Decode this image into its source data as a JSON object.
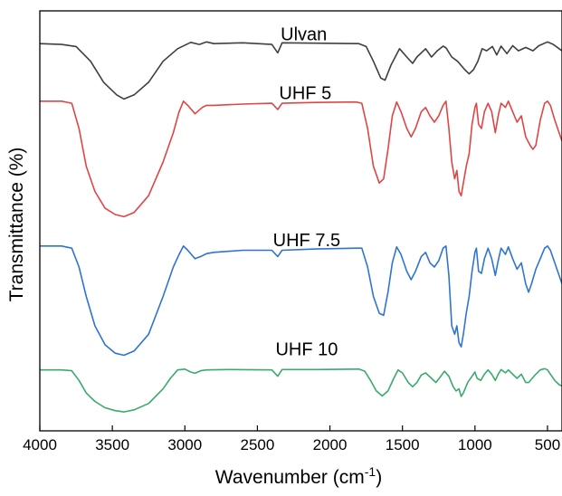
{
  "chart_data": {
    "type": "line",
    "xlabel_main": "Wavenumber (cm",
    "xlabel_sup": "-1",
    "xlabel_close": ")",
    "ylabel": "Transmittance (%)",
    "xlim": [
      4000,
      400
    ],
    "ylim": [
      0,
      100
    ],
    "x_reversed": true,
    "yticks_shown": false,
    "grid": false,
    "xticks": [
      4000,
      3500,
      3000,
      2500,
      2000,
      1500,
      1000,
      500
    ],
    "xtick_labels": [
      "4000",
      "3500",
      "3000",
      "2500",
      "2000",
      "1500",
      "1000",
      "500"
    ],
    "series": [
      {
        "name": "Ulvan",
        "color": "#3f3f3f",
        "label_x": 2180,
        "label_y": 93,
        "points": [
          [
            4000,
            92.2
          ],
          [
            3850,
            92
          ],
          [
            3750,
            91.5
          ],
          [
            3650,
            88
          ],
          [
            3560,
            83
          ],
          [
            3470,
            80
          ],
          [
            3420,
            79
          ],
          [
            3350,
            80
          ],
          [
            3250,
            83
          ],
          [
            3150,
            88
          ],
          [
            3050,
            91
          ],
          [
            2960,
            92.5
          ],
          [
            2900,
            92
          ],
          [
            2850,
            92.6
          ],
          [
            2800,
            92.2
          ],
          [
            2600,
            92.4
          ],
          [
            2400,
            92
          ],
          [
            2360,
            90
          ],
          [
            2330,
            92.4
          ],
          [
            2100,
            92.3
          ],
          [
            1800,
            92.2
          ],
          [
            1750,
            91.5
          ],
          [
            1700,
            88
          ],
          [
            1650,
            84
          ],
          [
            1620,
            83.5
          ],
          [
            1580,
            87
          ],
          [
            1520,
            91
          ],
          [
            1470,
            89
          ],
          [
            1430,
            87.5
          ],
          [
            1400,
            89
          ],
          [
            1340,
            91
          ],
          [
            1300,
            89
          ],
          [
            1260,
            90.5
          ],
          [
            1220,
            91.6
          ],
          [
            1200,
            91.2
          ],
          [
            1160,
            89
          ],
          [
            1120,
            88
          ],
          [
            1070,
            86
          ],
          [
            1040,
            85
          ],
          [
            1010,
            86
          ],
          [
            980,
            88
          ],
          [
            950,
            91
          ],
          [
            920,
            90.5
          ],
          [
            880,
            91.5
          ],
          [
            850,
            89.5
          ],
          [
            820,
            91.6
          ],
          [
            780,
            89.8
          ],
          [
            740,
            91.7
          ],
          [
            700,
            90.5
          ],
          [
            650,
            91.3
          ],
          [
            600,
            90.5
          ],
          [
            560,
            91.7
          ],
          [
            500,
            92.6
          ],
          [
            460,
            92
          ],
          [
            420,
            91
          ],
          [
            400,
            90.5
          ]
        ]
      },
      {
        "name": "UHF 5",
        "color": "#e04545",
        "label_x": 2170,
        "label_y": 79,
        "points": [
          [
            4000,
            78.5
          ],
          [
            3850,
            78.5
          ],
          [
            3780,
            78
          ],
          [
            3730,
            72
          ],
          [
            3680,
            63
          ],
          [
            3620,
            57
          ],
          [
            3550,
            53
          ],
          [
            3480,
            51.5
          ],
          [
            3420,
            51
          ],
          [
            3350,
            52
          ],
          [
            3250,
            56
          ],
          [
            3150,
            64
          ],
          [
            3080,
            71
          ],
          [
            3040,
            76
          ],
          [
            3010,
            78.5
          ],
          [
            2980,
            77.5
          ],
          [
            2930,
            75.5
          ],
          [
            2880,
            77
          ],
          [
            2850,
            77.5
          ],
          [
            2800,
            77.5
          ],
          [
            2600,
            77.8
          ],
          [
            2400,
            78
          ],
          [
            2360,
            76.5
          ],
          [
            2330,
            78
          ],
          [
            2100,
            78.2
          ],
          [
            1820,
            78.3
          ],
          [
            1780,
            78
          ],
          [
            1740,
            72
          ],
          [
            1700,
            63
          ],
          [
            1660,
            59
          ],
          [
            1630,
            60
          ],
          [
            1600,
            67
          ],
          [
            1570,
            75
          ],
          [
            1540,
            78.3
          ],
          [
            1510,
            76
          ],
          [
            1470,
            72
          ],
          [
            1440,
            70
          ],
          [
            1410,
            72
          ],
          [
            1370,
            76
          ],
          [
            1340,
            77
          ],
          [
            1310,
            75
          ],
          [
            1280,
            73.5
          ],
          [
            1250,
            75
          ],
          [
            1220,
            77.5
          ],
          [
            1200,
            78.5
          ],
          [
            1180,
            72
          ],
          [
            1160,
            64
          ],
          [
            1140,
            60
          ],
          [
            1125,
            62
          ],
          [
            1110,
            57
          ],
          [
            1095,
            56
          ],
          [
            1080,
            59
          ],
          [
            1060,
            63
          ],
          [
            1040,
            66
          ],
          [
            1020,
            73
          ],
          [
            1000,
            77
          ],
          [
            990,
            78
          ],
          [
            975,
            73
          ],
          [
            955,
            72
          ],
          [
            935,
            76
          ],
          [
            910,
            78
          ],
          [
            885,
            76
          ],
          [
            860,
            71
          ],
          [
            840,
            75
          ],
          [
            820,
            78
          ],
          [
            790,
            77
          ],
          [
            770,
            78.5
          ],
          [
            740,
            76
          ],
          [
            710,
            73.5
          ],
          [
            680,
            75
          ],
          [
            650,
            70
          ],
          [
            620,
            68
          ],
          [
            600,
            67
          ],
          [
            580,
            68
          ],
          [
            550,
            74
          ],
          [
            520,
            78
          ],
          [
            500,
            78.5
          ],
          [
            480,
            77.5
          ],
          [
            450,
            74
          ],
          [
            420,
            71
          ],
          [
            400,
            69
          ]
        ]
      },
      {
        "name": "UHF 7.5",
        "color": "#2f74d0",
        "label_x": 2160,
        "label_y": 44,
        "points": [
          [
            4000,
            44
          ],
          [
            3850,
            44
          ],
          [
            3780,
            43.5
          ],
          [
            3730,
            39
          ],
          [
            3680,
            32
          ],
          [
            3620,
            25
          ],
          [
            3550,
            20.5
          ],
          [
            3480,
            18.5
          ],
          [
            3420,
            18
          ],
          [
            3350,
            19
          ],
          [
            3250,
            23
          ],
          [
            3150,
            32
          ],
          [
            3080,
            39
          ],
          [
            3040,
            42
          ],
          [
            3010,
            44
          ],
          [
            2980,
            43
          ],
          [
            2930,
            41
          ],
          [
            2890,
            41.5
          ],
          [
            2850,
            42.2
          ],
          [
            2800,
            42.5
          ],
          [
            2600,
            43
          ],
          [
            2400,
            43
          ],
          [
            2360,
            41.5
          ],
          [
            2330,
            43
          ],
          [
            2100,
            43.3
          ],
          [
            1820,
            43.5
          ],
          [
            1780,
            43.5
          ],
          [
            1740,
            39
          ],
          [
            1700,
            32
          ],
          [
            1660,
            28
          ],
          [
            1630,
            27.5
          ],
          [
            1600,
            33
          ],
          [
            1570,
            40
          ],
          [
            1540,
            43.8
          ],
          [
            1510,
            42
          ],
          [
            1470,
            38
          ],
          [
            1440,
            36
          ],
          [
            1410,
            38
          ],
          [
            1370,
            41.5
          ],
          [
            1340,
            42.5
          ],
          [
            1310,
            40
          ],
          [
            1280,
            39
          ],
          [
            1250,
            40.5
          ],
          [
            1220,
            43.5
          ],
          [
            1200,
            44
          ],
          [
            1180,
            37
          ],
          [
            1160,
            25
          ],
          [
            1140,
            23
          ],
          [
            1125,
            25
          ],
          [
            1110,
            21
          ],
          [
            1095,
            20
          ],
          [
            1080,
            23
          ],
          [
            1060,
            28
          ],
          [
            1040,
            32
          ],
          [
            1020,
            38
          ],
          [
            1000,
            42.5
          ],
          [
            990,
            43.5
          ],
          [
            975,
            38
          ],
          [
            955,
            37.5
          ],
          [
            935,
            41
          ],
          [
            910,
            43.5
          ],
          [
            885,
            41
          ],
          [
            860,
            37
          ],
          [
            840,
            40.5
          ],
          [
            820,
            43.5
          ],
          [
            790,
            42
          ],
          [
            770,
            43.8
          ],
          [
            740,
            41
          ],
          [
            710,
            38.5
          ],
          [
            680,
            40
          ],
          [
            650,
            35
          ],
          [
            630,
            33
          ],
          [
            610,
            35
          ],
          [
            580,
            38.5
          ],
          [
            550,
            41
          ],
          [
            520,
            43.5
          ],
          [
            500,
            44
          ],
          [
            480,
            43
          ],
          [
            450,
            40
          ],
          [
            420,
            37
          ],
          [
            400,
            35
          ]
        ]
      },
      {
        "name": "UHF 10",
        "color": "#3aaa6e",
        "label_x": 2160,
        "label_y": 18,
        "points": [
          [
            4000,
            14.5
          ],
          [
            3850,
            14.5
          ],
          [
            3780,
            14.3
          ],
          [
            3730,
            12
          ],
          [
            3680,
            9
          ],
          [
            3620,
            7
          ],
          [
            3550,
            5.5
          ],
          [
            3480,
            4.8
          ],
          [
            3420,
            4.5
          ],
          [
            3350,
            5
          ],
          [
            3250,
            6.5
          ],
          [
            3150,
            10
          ],
          [
            3100,
            12.5
          ],
          [
            3050,
            14.5
          ],
          [
            3000,
            14.7
          ],
          [
            2960,
            14
          ],
          [
            2930,
            13.7
          ],
          [
            2890,
            14.3
          ],
          [
            2850,
            14.5
          ],
          [
            2700,
            14.6
          ],
          [
            2400,
            14.5
          ],
          [
            2360,
            13
          ],
          [
            2330,
            14.6
          ],
          [
            2100,
            14.6
          ],
          [
            1800,
            14.7
          ],
          [
            1760,
            14.2
          ],
          [
            1720,
            12
          ],
          [
            1680,
            9.5
          ],
          [
            1640,
            8.3
          ],
          [
            1600,
            9.5
          ],
          [
            1560,
            12.5
          ],
          [
            1530,
            14.5
          ],
          [
            1500,
            13.8
          ],
          [
            1460,
            11.5
          ],
          [
            1430,
            10.5
          ],
          [
            1400,
            11.5
          ],
          [
            1370,
            13.3
          ],
          [
            1340,
            13.8
          ],
          [
            1300,
            12.5
          ],
          [
            1270,
            11.5
          ],
          [
            1240,
            12.8
          ],
          [
            1210,
            14.2
          ],
          [
            1180,
            13
          ],
          [
            1150,
            10.5
          ],
          [
            1130,
            9.5
          ],
          [
            1110,
            10
          ],
          [
            1095,
            8.2
          ],
          [
            1080,
            9
          ],
          [
            1050,
            11.5
          ],
          [
            1020,
            13
          ],
          [
            1000,
            14
          ],
          [
            985,
            12.5
          ],
          [
            960,
            12
          ],
          [
            935,
            13.5
          ],
          [
            910,
            14.5
          ],
          [
            885,
            13.5
          ],
          [
            860,
            12
          ],
          [
            840,
            13.5
          ],
          [
            820,
            14.6
          ],
          [
            790,
            13.8
          ],
          [
            770,
            14.5
          ],
          [
            740,
            13.5
          ],
          [
            710,
            12.5
          ],
          [
            680,
            13.5
          ],
          [
            650,
            11.5
          ],
          [
            630,
            11.5
          ],
          [
            610,
            12.3
          ],
          [
            580,
            13.5
          ],
          [
            550,
            14.5
          ],
          [
            520,
            14.8
          ],
          [
            500,
            14.5
          ],
          [
            480,
            13.5
          ],
          [
            450,
            12
          ],
          [
            420,
            11
          ],
          [
            400,
            10.7
          ]
        ]
      }
    ]
  }
}
